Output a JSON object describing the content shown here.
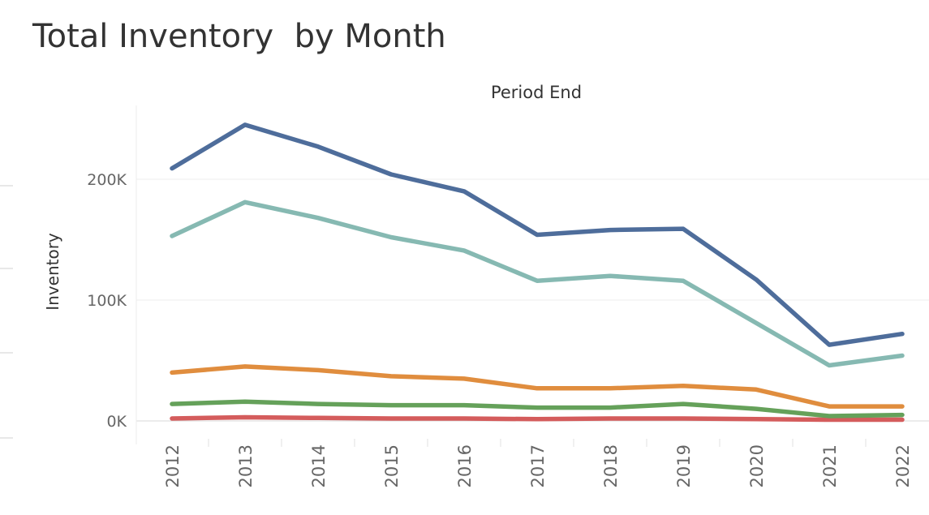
{
  "title": "Total Inventory  by Month",
  "chart_data": {
    "type": "line",
    "title": "Total Inventory  by Month",
    "column_header": "Period End",
    "xlabel": "",
    "ylabel": "Inventory",
    "x": [
      "2012",
      "2013",
      "2014",
      "2015",
      "2016",
      "2017",
      "2018",
      "2019",
      "2020",
      "2021",
      "2022"
    ],
    "ylim": [
      0,
      260000
    ],
    "yticks": [
      0,
      100000,
      200000
    ],
    "ytick_labels": [
      "0K",
      "100K",
      "200K"
    ],
    "grid": true,
    "legend": "none",
    "series": [
      {
        "color": "#4e6d9b",
        "values": [
          209000,
          245000,
          227000,
          204000,
          190000,
          154000,
          158000,
          159000,
          117000,
          63000,
          72000
        ]
      },
      {
        "color": "#86b9b2",
        "values": [
          153000,
          181000,
          168000,
          152000,
          141000,
          116000,
          120000,
          116000,
          81000,
          46000,
          54000
        ]
      },
      {
        "color": "#e08d3e",
        "values": [
          40000,
          45000,
          42000,
          37000,
          35000,
          27000,
          27000,
          29000,
          26000,
          12000,
          12000
        ]
      },
      {
        "color": "#65a15a",
        "values": [
          14000,
          16000,
          14000,
          13000,
          13000,
          11000,
          11000,
          14000,
          10000,
          4000,
          5000
        ]
      },
      {
        "color": "#d45c5c",
        "values": [
          2000,
          3000,
          2500,
          2000,
          2000,
          1500,
          2000,
          2000,
          1500,
          1000,
          1000
        ]
      }
    ]
  }
}
